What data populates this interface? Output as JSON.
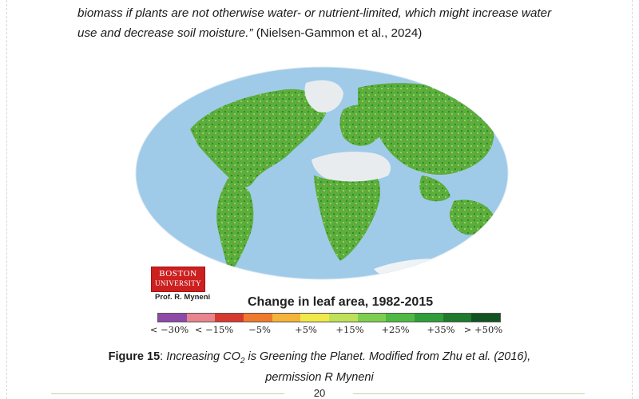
{
  "quote": {
    "line1": "biomass if plants are not otherwise water- or nutrient-limited, which might increase water",
    "line2_italic": "use and decrease soil moisture.”",
    "line2_citation": " (Nielsen-Gammon et al., 2024)"
  },
  "figure": {
    "logo_line1": "BOSTON",
    "logo_line2": "UNIVERSITY",
    "credit": "Prof. R. Myneni",
    "legend_title": "Change in leaf area, 1982-2015",
    "legend_colors": [
      "#8e4aa8",
      "#e8858f",
      "#d63a2f",
      "#ef7a2e",
      "#f4b33a",
      "#f1e94a",
      "#bfe15a",
      "#7fcf4f",
      "#4fb944",
      "#2f9e3a",
      "#1f7a2d",
      "#125421"
    ],
    "legend_ticks": [
      "< −30%",
      "< −15%",
      "−5%",
      "+5%",
      "+15%",
      "+25%",
      "+35%",
      "> +50%"
    ],
    "ocean_color": "#9fcbe8",
    "land_color": "#5aae3c"
  },
  "caption": {
    "label": "Figure 15",
    "separator": ": ",
    "text_a": "Increasing CO",
    "subscript": "2",
    "text_b": " is Greening the Planet. Modified from Zhu et al. (2016),",
    "line2": "permission R Myneni"
  },
  "footer": {
    "page_number": "20"
  }
}
